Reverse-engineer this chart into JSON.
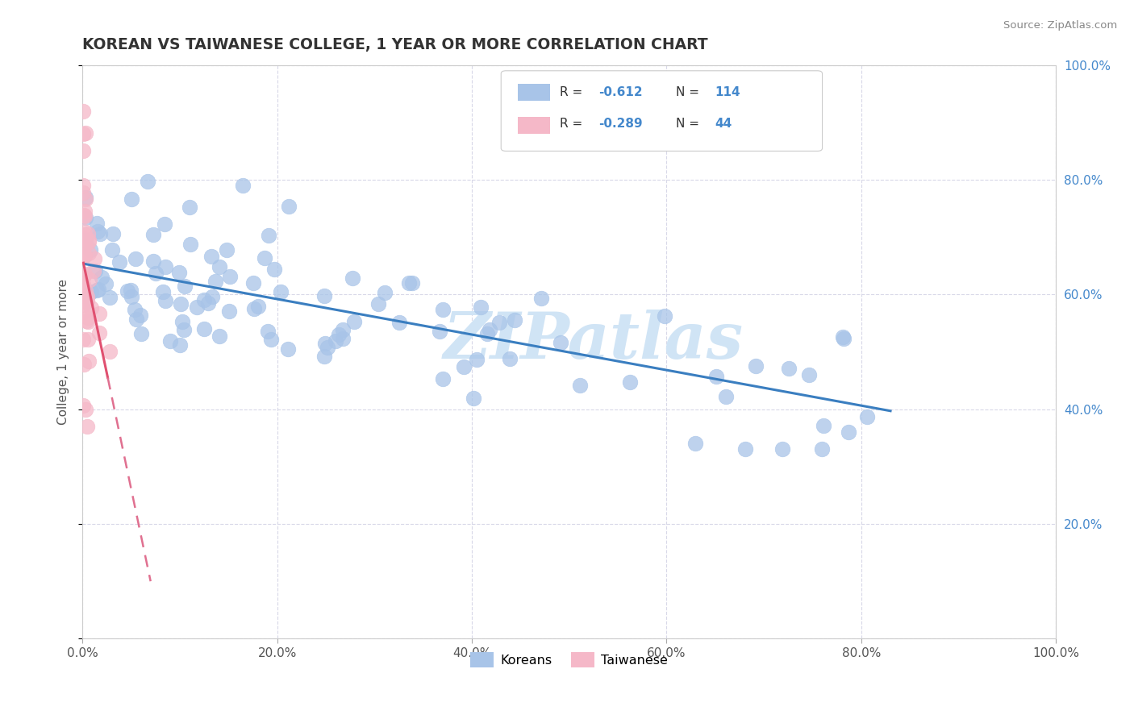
{
  "title": "KOREAN VS TAIWANESE COLLEGE, 1 YEAR OR MORE CORRELATION CHART",
  "source_text": "Source: ZipAtlas.com",
  "ylabel": "College, 1 year or more",
  "xlim": [
    0.0,
    1.0
  ],
  "ylim": [
    0.0,
    1.0
  ],
  "xtick_vals": [
    0.0,
    0.2,
    0.4,
    0.6,
    0.8,
    1.0
  ],
  "xtick_labels": [
    "0.0%",
    "20.0%",
    "40.0%",
    "60.0%",
    "80.0%",
    "100.0%"
  ],
  "ytick_vals": [
    0.0,
    0.2,
    0.4,
    0.6,
    0.8,
    1.0
  ],
  "ytick_labels_right": [
    "",
    "20.0%",
    "40.0%",
    "60.0%",
    "80.0%",
    "100.0%"
  ],
  "korean_color": "#a8c4e8",
  "taiwanese_color": "#f5b8c8",
  "trendline_korean_color": "#3a7ec0",
  "trendline_taiwanese_solid_color": "#e05070",
  "trendline_taiwanese_dash_color": "#e07090",
  "watermark_text": "ZIPatlas",
  "watermark_color": "#d0e4f5",
  "background_color": "#ffffff",
  "grid_color": "#d8d8e8",
  "title_color": "#333333",
  "axis_label_color": "#555555",
  "tick_color_right": "#4488cc",
  "tick_color_bottom": "#555555",
  "koreans_label": "Koreans",
  "taiwanese_label": "Taiwanese",
  "legend_box_edge": "#cccccc",
  "legend_r1_val": "-0.612",
  "legend_n1_val": "114",
  "legend_r2_val": "-0.289",
  "legend_n2_val": "44",
  "korean_trendline": [
    [
      0.003,
      0.653
    ],
    [
      0.83,
      0.397
    ]
  ],
  "taiwanese_trendline_solid": [
    [
      0.001,
      0.655
    ],
    [
      0.026,
      0.455
    ]
  ],
  "taiwanese_trendline_dash": [
    [
      0.026,
      0.455
    ],
    [
      0.07,
      0.1
    ]
  ]
}
